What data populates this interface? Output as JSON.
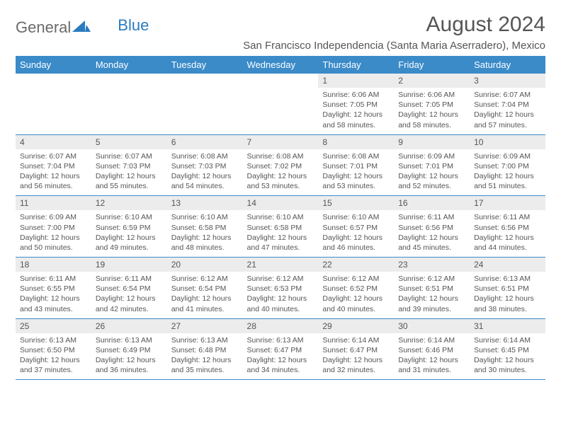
{
  "brand": {
    "name_a": "General",
    "name_b": "Blue"
  },
  "colors": {
    "header_bg": "#3b8bc9",
    "header_fg": "#ffffff",
    "daynum_bg": "#ececec",
    "text": "#555555",
    "rule": "#3b8bc9",
    "logo_blue": "#2b7bbf"
  },
  "title": "August 2024",
  "location": "San Francisco Independencia (Santa Maria Aserradero), Mexico",
  "weekdays": [
    "Sunday",
    "Monday",
    "Tuesday",
    "Wednesday",
    "Thursday",
    "Friday",
    "Saturday"
  ],
  "weeks": [
    [
      {
        "blank": true
      },
      {
        "blank": true
      },
      {
        "blank": true
      },
      {
        "blank": true
      },
      {
        "n": "1",
        "sunrise": "6:06 AM",
        "sunset": "7:05 PM",
        "day_h": "12",
        "day_m": "58"
      },
      {
        "n": "2",
        "sunrise": "6:06 AM",
        "sunset": "7:05 PM",
        "day_h": "12",
        "day_m": "58"
      },
      {
        "n": "3",
        "sunrise": "6:07 AM",
        "sunset": "7:04 PM",
        "day_h": "12",
        "day_m": "57"
      }
    ],
    [
      {
        "n": "4",
        "sunrise": "6:07 AM",
        "sunset": "7:04 PM",
        "day_h": "12",
        "day_m": "56"
      },
      {
        "n": "5",
        "sunrise": "6:07 AM",
        "sunset": "7:03 PM",
        "day_h": "12",
        "day_m": "55"
      },
      {
        "n": "6",
        "sunrise": "6:08 AM",
        "sunset": "7:03 PM",
        "day_h": "12",
        "day_m": "54"
      },
      {
        "n": "7",
        "sunrise": "6:08 AM",
        "sunset": "7:02 PM",
        "day_h": "12",
        "day_m": "53"
      },
      {
        "n": "8",
        "sunrise": "6:08 AM",
        "sunset": "7:01 PM",
        "day_h": "12",
        "day_m": "53"
      },
      {
        "n": "9",
        "sunrise": "6:09 AM",
        "sunset": "7:01 PM",
        "day_h": "12",
        "day_m": "52"
      },
      {
        "n": "10",
        "sunrise": "6:09 AM",
        "sunset": "7:00 PM",
        "day_h": "12",
        "day_m": "51"
      }
    ],
    [
      {
        "n": "11",
        "sunrise": "6:09 AM",
        "sunset": "7:00 PM",
        "day_h": "12",
        "day_m": "50"
      },
      {
        "n": "12",
        "sunrise": "6:10 AM",
        "sunset": "6:59 PM",
        "day_h": "12",
        "day_m": "49"
      },
      {
        "n": "13",
        "sunrise": "6:10 AM",
        "sunset": "6:58 PM",
        "day_h": "12",
        "day_m": "48"
      },
      {
        "n": "14",
        "sunrise": "6:10 AM",
        "sunset": "6:58 PM",
        "day_h": "12",
        "day_m": "47"
      },
      {
        "n": "15",
        "sunrise": "6:10 AM",
        "sunset": "6:57 PM",
        "day_h": "12",
        "day_m": "46"
      },
      {
        "n": "16",
        "sunrise": "6:11 AM",
        "sunset": "6:56 PM",
        "day_h": "12",
        "day_m": "45"
      },
      {
        "n": "17",
        "sunrise": "6:11 AM",
        "sunset": "6:56 PM",
        "day_h": "12",
        "day_m": "44"
      }
    ],
    [
      {
        "n": "18",
        "sunrise": "6:11 AM",
        "sunset": "6:55 PM",
        "day_h": "12",
        "day_m": "43"
      },
      {
        "n": "19",
        "sunrise": "6:11 AM",
        "sunset": "6:54 PM",
        "day_h": "12",
        "day_m": "42"
      },
      {
        "n": "20",
        "sunrise": "6:12 AM",
        "sunset": "6:54 PM",
        "day_h": "12",
        "day_m": "41"
      },
      {
        "n": "21",
        "sunrise": "6:12 AM",
        "sunset": "6:53 PM",
        "day_h": "12",
        "day_m": "40"
      },
      {
        "n": "22",
        "sunrise": "6:12 AM",
        "sunset": "6:52 PM",
        "day_h": "12",
        "day_m": "40"
      },
      {
        "n": "23",
        "sunrise": "6:12 AM",
        "sunset": "6:51 PM",
        "day_h": "12",
        "day_m": "39"
      },
      {
        "n": "24",
        "sunrise": "6:13 AM",
        "sunset": "6:51 PM",
        "day_h": "12",
        "day_m": "38"
      }
    ],
    [
      {
        "n": "25",
        "sunrise": "6:13 AM",
        "sunset": "6:50 PM",
        "day_h": "12",
        "day_m": "37"
      },
      {
        "n": "26",
        "sunrise": "6:13 AM",
        "sunset": "6:49 PM",
        "day_h": "12",
        "day_m": "36"
      },
      {
        "n": "27",
        "sunrise": "6:13 AM",
        "sunset": "6:48 PM",
        "day_h": "12",
        "day_m": "35"
      },
      {
        "n": "28",
        "sunrise": "6:13 AM",
        "sunset": "6:47 PM",
        "day_h": "12",
        "day_m": "34"
      },
      {
        "n": "29",
        "sunrise": "6:14 AM",
        "sunset": "6:47 PM",
        "day_h": "12",
        "day_m": "32"
      },
      {
        "n": "30",
        "sunrise": "6:14 AM",
        "sunset": "6:46 PM",
        "day_h": "12",
        "day_m": "31"
      },
      {
        "n": "31",
        "sunrise": "6:14 AM",
        "sunset": "6:45 PM",
        "day_h": "12",
        "day_m": "30"
      }
    ]
  ],
  "labels": {
    "sunrise": "Sunrise: ",
    "sunset": "Sunset: ",
    "daylight_a": "Daylight: ",
    "daylight_b": " hours and ",
    "daylight_c": " minutes."
  }
}
